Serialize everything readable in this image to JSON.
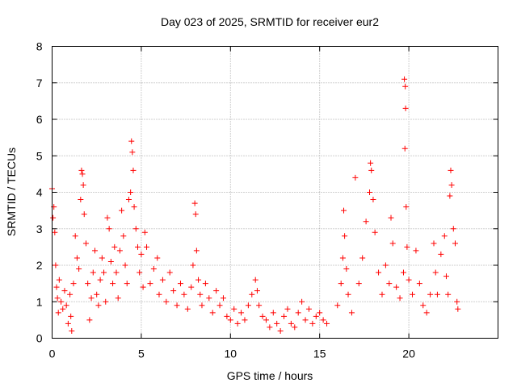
{
  "chart_data": {
    "type": "scatter",
    "title": "Day 023 of 2025, SRMTID for receiver eur2",
    "xlabel": "GPS time / hours",
    "ylabel": "SRMTID / TECUs",
    "xlim": [
      0,
      25
    ],
    "ylim": [
      0,
      8
    ],
    "xticks": [
      0,
      5,
      10,
      15,
      20
    ],
    "yticks": [
      0,
      1,
      2,
      3,
      4,
      5,
      6,
      7,
      8
    ],
    "grid": true,
    "marker": "plus",
    "color": "#ff0000",
    "series": [
      {
        "name": "SRMTID",
        "points": [
          [
            0.0,
            4.1
          ],
          [
            0.05,
            3.3
          ],
          [
            0.1,
            3.6
          ],
          [
            0.15,
            2.9
          ],
          [
            0.2,
            2.0
          ],
          [
            0.25,
            1.4
          ],
          [
            0.3,
            1.1
          ],
          [
            0.35,
            0.7
          ],
          [
            0.4,
            1.6
          ],
          [
            0.5,
            1.0
          ],
          [
            0.6,
            0.8
          ],
          [
            0.7,
            1.3
          ],
          [
            0.8,
            0.9
          ],
          [
            0.9,
            0.4
          ],
          [
            1.0,
            1.2
          ],
          [
            1.05,
            0.6
          ],
          [
            1.1,
            0.2
          ],
          [
            1.2,
            1.5
          ],
          [
            1.3,
            2.8
          ],
          [
            1.4,
            2.2
          ],
          [
            1.5,
            1.9
          ],
          [
            1.6,
            3.8
          ],
          [
            1.65,
            4.6
          ],
          [
            1.7,
            4.5
          ],
          [
            1.75,
            4.2
          ],
          [
            1.8,
            3.4
          ],
          [
            1.9,
            2.6
          ],
          [
            2.0,
            1.5
          ],
          [
            2.1,
            0.5
          ],
          [
            2.2,
            1.1
          ],
          [
            2.3,
            1.8
          ],
          [
            2.4,
            2.4
          ],
          [
            2.5,
            1.2
          ],
          [
            2.6,
            0.9
          ],
          [
            2.7,
            1.6
          ],
          [
            2.8,
            2.2
          ],
          [
            2.9,
            1.8
          ],
          [
            3.0,
            1.0
          ],
          [
            3.1,
            3.3
          ],
          [
            3.2,
            3.0
          ],
          [
            3.3,
            2.1
          ],
          [
            3.4,
            1.5
          ],
          [
            3.5,
            2.5
          ],
          [
            3.6,
            1.8
          ],
          [
            3.7,
            1.1
          ],
          [
            3.8,
            2.4
          ],
          [
            3.9,
            3.5
          ],
          [
            4.0,
            2.8
          ],
          [
            4.1,
            2.0
          ],
          [
            4.2,
            1.5
          ],
          [
            4.3,
            3.8
          ],
          [
            4.4,
            4.0
          ],
          [
            4.45,
            5.4
          ],
          [
            4.5,
            5.1
          ],
          [
            4.55,
            4.6
          ],
          [
            4.6,
            3.6
          ],
          [
            4.7,
            3.0
          ],
          [
            4.8,
            2.5
          ],
          [
            4.9,
            1.8
          ],
          [
            5.0,
            2.3
          ],
          [
            5.1,
            1.4
          ],
          [
            5.2,
            2.9
          ],
          [
            5.3,
            2.5
          ],
          [
            5.5,
            1.5
          ],
          [
            5.7,
            1.9
          ],
          [
            5.9,
            2.2
          ],
          [
            6.0,
            1.2
          ],
          [
            6.2,
            1.6
          ],
          [
            6.4,
            1.0
          ],
          [
            6.6,
            1.8
          ],
          [
            6.8,
            1.3
          ],
          [
            7.0,
            0.9
          ],
          [
            7.2,
            1.5
          ],
          [
            7.4,
            1.2
          ],
          [
            7.6,
            0.8
          ],
          [
            7.8,
            1.4
          ],
          [
            7.9,
            2.0
          ],
          [
            8.0,
            3.7
          ],
          [
            8.05,
            3.4
          ],
          [
            8.1,
            2.4
          ],
          [
            8.2,
            1.6
          ],
          [
            8.3,
            1.2
          ],
          [
            8.4,
            0.9
          ],
          [
            8.6,
            1.5
          ],
          [
            8.8,
            1.1
          ],
          [
            9.0,
            0.7
          ],
          [
            9.2,
            1.3
          ],
          [
            9.4,
            0.9
          ],
          [
            9.6,
            1.1
          ],
          [
            9.8,
            0.6
          ],
          [
            10.0,
            0.5
          ],
          [
            10.2,
            0.8
          ],
          [
            10.4,
            0.4
          ],
          [
            10.6,
            0.7
          ],
          [
            10.8,
            0.5
          ],
          [
            11.0,
            0.9
          ],
          [
            11.2,
            1.2
          ],
          [
            11.4,
            1.6
          ],
          [
            11.5,
            1.3
          ],
          [
            11.6,
            0.9
          ],
          [
            11.8,
            0.6
          ],
          [
            12.0,
            0.5
          ],
          [
            12.2,
            0.3
          ],
          [
            12.4,
            0.7
          ],
          [
            12.6,
            0.4
          ],
          [
            12.8,
            0.2
          ],
          [
            13.0,
            0.6
          ],
          [
            13.2,
            0.8
          ],
          [
            13.4,
            0.4
          ],
          [
            13.6,
            0.3
          ],
          [
            13.8,
            0.7
          ],
          [
            14.0,
            1.0
          ],
          [
            14.2,
            0.5
          ],
          [
            14.4,
            0.8
          ],
          [
            14.6,
            0.4
          ],
          [
            14.8,
            0.6
          ],
          [
            15.0,
            0.7
          ],
          [
            15.2,
            0.5
          ],
          [
            15.4,
            0.4
          ],
          [
            16.0,
            0.9
          ],
          [
            16.2,
            1.5
          ],
          [
            16.3,
            2.2
          ],
          [
            16.35,
            3.5
          ],
          [
            16.4,
            2.8
          ],
          [
            16.5,
            1.9
          ],
          [
            16.6,
            1.2
          ],
          [
            16.8,
            0.7
          ],
          [
            17.0,
            4.4
          ],
          [
            17.2,
            1.5
          ],
          [
            17.4,
            2.2
          ],
          [
            17.6,
            3.2
          ],
          [
            17.8,
            4.0
          ],
          [
            17.85,
            4.8
          ],
          [
            17.9,
            4.6
          ],
          [
            18.0,
            3.8
          ],
          [
            18.1,
            2.9
          ],
          [
            18.3,
            1.8
          ],
          [
            18.5,
            1.2
          ],
          [
            18.7,
            2.0
          ],
          [
            18.9,
            1.5
          ],
          [
            19.0,
            3.3
          ],
          [
            19.1,
            2.6
          ],
          [
            19.3,
            1.4
          ],
          [
            19.5,
            1.1
          ],
          [
            19.7,
            1.8
          ],
          [
            19.75,
            7.1
          ],
          [
            19.8,
            6.9
          ],
          [
            19.82,
            6.3
          ],
          [
            19.78,
            5.2
          ],
          [
            19.85,
            3.6
          ],
          [
            19.9,
            2.5
          ],
          [
            20.0,
            1.6
          ],
          [
            20.2,
            1.2
          ],
          [
            20.4,
            2.4
          ],
          [
            20.6,
            1.5
          ],
          [
            20.8,
            0.9
          ],
          [
            21.0,
            0.7
          ],
          [
            21.2,
            1.2
          ],
          [
            21.4,
            2.6
          ],
          [
            21.5,
            1.8
          ],
          [
            21.6,
            1.2
          ],
          [
            21.8,
            2.3
          ],
          [
            22.0,
            2.8
          ],
          [
            22.1,
            1.7
          ],
          [
            22.2,
            1.2
          ],
          [
            22.3,
            3.9
          ],
          [
            22.35,
            4.6
          ],
          [
            22.4,
            4.2
          ],
          [
            22.5,
            3.0
          ],
          [
            22.6,
            2.6
          ],
          [
            22.7,
            1.0
          ],
          [
            22.75,
            0.8
          ]
        ]
      }
    ]
  }
}
